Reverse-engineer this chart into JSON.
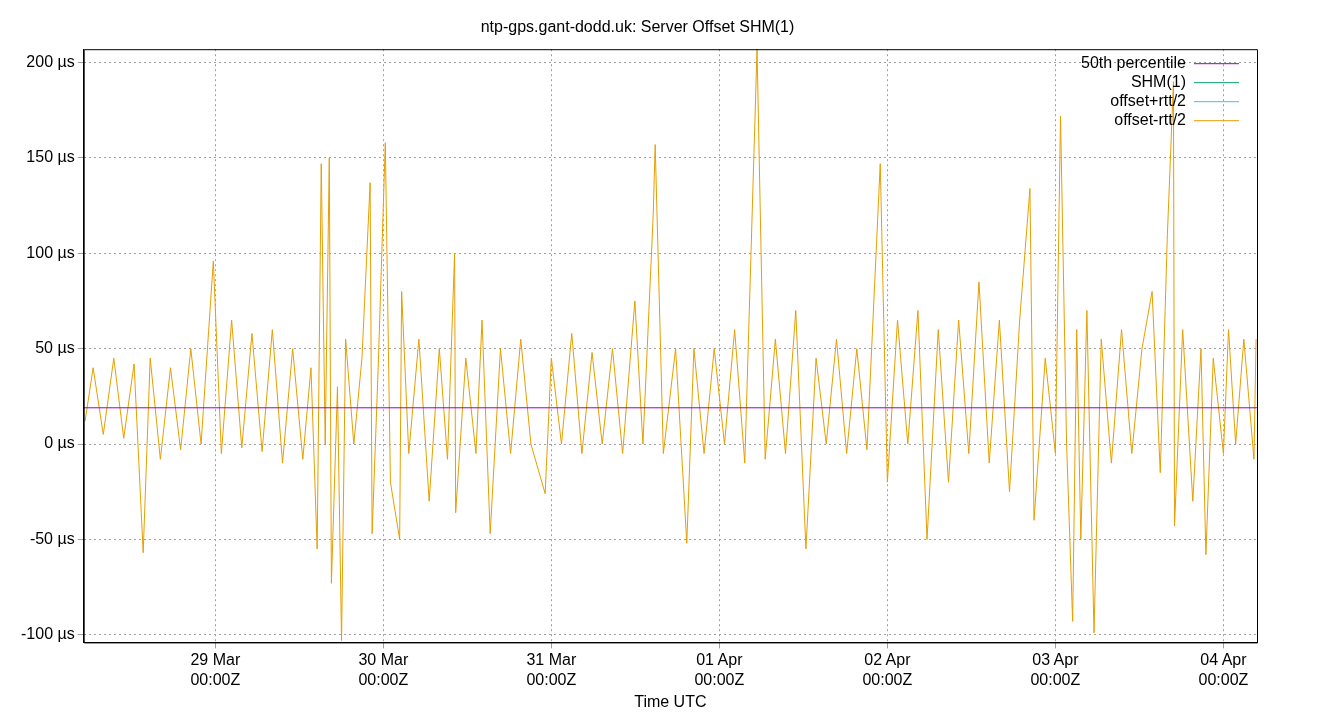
{
  "chart_data": {
    "type": "line",
    "title": "ntp-gps.gant-dodd.uk: Server Offset SHM(1)",
    "xlabel": "Time UTC",
    "xlim": [
      "--03-28T05:12",
      "--04-04T04:48"
    ],
    "xticks": [
      {
        "value": "--03-29T00:00",
        "label": "29 Mar\n00:00Z"
      },
      {
        "value": "--03-30T00:00",
        "label": "30 Mar\n00:00Z"
      },
      {
        "value": "--03-31T00:00",
        "label": "31 Mar\n00:00Z"
      },
      {
        "value": "--04-01T00:00",
        "label": "01 Apr\n00:00Z"
      },
      {
        "value": "--04-02T00:00",
        "label": "02 Apr\n00:00Z"
      },
      {
        "value": "--04-03T00:00",
        "label": "03 Apr\n00:00Z"
      },
      {
        "value": "--04-04T00:00",
        "label": "04 Apr\n00:00Z"
      }
    ],
    "ylim": [
      -104,
      207
    ],
    "yticks": [
      {
        "value": -100,
        "label": "-100 µs"
      },
      {
        "value": -50,
        "label": "-50 µs"
      },
      {
        "value": 0,
        "label": "0 µs"
      },
      {
        "value": 50,
        "label": "50 µs"
      },
      {
        "value": 100,
        "label": "100 µs"
      },
      {
        "value": 150,
        "label": "150 µs"
      },
      {
        "value": 200,
        "label": "200 µs"
      }
    ],
    "grid": true,
    "legend": "top right",
    "marker": "none",
    "line_style": "solid",
    "series": [
      {
        "name": "50th percentile",
        "color": "#9400d3",
        "x": [
          "--03-28T05:12",
          "--04-04T04:48"
        ],
        "values": [
          19,
          19
        ]
      },
      {
        "name": "SHM(1)",
        "color": "#009e73"
      },
      {
        "name": "offset+rtt/2",
        "color": "#56b4e9"
      },
      {
        "name": "offset-rtt/2",
        "color": "#e69f00",
        "x": [
          "--03-28T05:24",
          "--03-28T06:33",
          "--03-28T08:00",
          "--03-28T09:30",
          "--03-28T10:55",
          "--03-28T12:24",
          "--03-28T13:42",
          "--03-28T14:42",
          "--03-28T16:09",
          "--03-28T17:36",
          "--03-28T19:03",
          "--03-28T20:30",
          "--03-28T21:58",
          "--03-28T23:43",
          "--03-29T00:52",
          "--03-29T02:20",
          "--03-29T03:47",
          "--03-29T05:14",
          "--03-29T06:41",
          "--03-29T08:09",
          "--03-29T09:36",
          "--03-29T11:03",
          "--03-29T12:30",
          "--03-29T13:40",
          "--03-29T14:33",
          "--03-29T15:08",
          "--03-29T15:42",
          "--03-29T16:17",
          "--03-29T16:35",
          "--03-29T17:27",
          "--03-29T18:02",
          "--03-29T18:37",
          "--03-29T19:47",
          "--03-29T20:57",
          "--03-29T22:07",
          "--03-29T22:24",
          "--03-29T23:16",
          "--03-30T00:17",
          "--03-30T01:01",
          "--03-30T02:20",
          "--03-30T02:37",
          "--03-30T03:38",
          "--03-30T05:05",
          "--03-30T06:33",
          "--03-30T08:00",
          "--03-30T09:10",
          "--03-30T10:11",
          "--03-30T10:20",
          "--03-30T11:47",
          "--03-30T13:14",
          "--03-30T14:06",
          "--03-30T15:16",
          "--03-30T16:44",
          "--03-30T18:11",
          "--03-30T19:38",
          "--03-30T21:05",
          "--03-30T23:07",
          "--03-31T00:00",
          "--03-31T01:27",
          "--03-31T02:55",
          "--03-31T04:22",
          "--03-31T05:49",
          "--03-31T07:16",
          "--03-31T08:44",
          "--03-31T10:11",
          "--03-31T11:56",
          "--03-31T13:05",
          "--03-31T14:33",
          "--03-31T14:50",
          "--03-31T16:00",
          "--03-31T17:45",
          "--03-31T19:21",
          "--03-31T20:22",
          "--03-31T21:49",
          "--03-31T23:16",
          "--04-01T00:44",
          "--04-01T02:11",
          "--04-01T03:38",
          "--04-01T05:23",
          "--04-01T06:33",
          "--04-01T08:00",
          "--04-01T09:27",
          "--04-01T10:55",
          "--04-01T12:22",
          "--04-01T13:49",
          "--04-01T15:16",
          "--04-01T16:44",
          "--04-01T18:11",
          "--04-01T19:38",
          "--04-01T21:05",
          "--04-01T22:59",
          "--04-02T00:00",
          "--04-02T01:27",
          "--04-02T02:55",
          "--04-02T04:22",
          "--04-02T05:40",
          "--04-02T07:16",
          "--04-02T08:44",
          "--04-02T10:11",
          "--04-02T11:38",
          "--04-02T13:05",
          "--04-02T14:33",
          "--04-02T16:00",
          "--04-02T17:27",
          "--04-02T18:54",
          "--04-02T20:22",
          "--04-02T20:57",
          "--04-02T22:33",
          "--04-03T00:00",
          "--04-03T00:44",
          "--04-03T01:36",
          "--04-03T02:28",
          "--04-03T03:03",
          "--04-03T03:38",
          "--04-03T04:30",
          "--04-03T05:31",
          "--04-03T06:33",
          "--04-03T08:00",
          "--04-03T09:27",
          "--04-03T10:55",
          "--04-03T12:22",
          "--04-03T13:49",
          "--04-03T14:59",
          "--04-03T16:00",
          "--04-03T16:52",
          "--04-03T17:01",
          "--04-03T18:11",
          "--04-03T19:38",
          "--04-03T20:48",
          "--04-03T21:30",
          "--04-03T22:33",
          "--04-04T00:00",
          "--04-04T00:44",
          "--04-04T01:45",
          "--04-04T02:55",
          "--04-04T04:22",
          "--04-04T04:40"
        ],
        "values": [
          12,
          40,
          5,
          45,
          3,
          42,
          -57,
          45,
          -8,
          40,
          -3,
          50,
          0,
          96,
          -5,
          65,
          -2,
          58,
          -4,
          60,
          -10,
          50,
          -8,
          40,
          -55,
          147,
          0,
          150,
          -73,
          30,
          -103,
          55,
          0,
          45,
          137,
          -47,
          40,
          158,
          -20,
          -50,
          80,
          -5,
          55,
          -30,
          50,
          -8,
          100,
          -36,
          45,
          -5,
          65,
          -47,
          50,
          -5,
          55,
          0,
          -26,
          45,
          0,
          58,
          -5,
          48,
          0,
          50,
          -5,
          75,
          0,
          120,
          157,
          -5,
          50,
          -52,
          50,
          -5,
          50,
          0,
          60,
          -10,
          207,
          -8,
          55,
          -5,
          70,
          -55,
          45,
          0,
          55,
          -5,
          50,
          -3,
          147,
          -20,
          65,
          0,
          70,
          -50,
          60,
          -20,
          65,
          -5,
          85,
          -10,
          65,
          -25,
          65,
          134,
          -40,
          45,
          -5,
          172,
          0,
          -93,
          60,
          -50,
          70,
          -99,
          55,
          -10,
          60,
          -5,
          50,
          80,
          -15,
          110,
          190,
          -43,
          60,
          -30,
          50,
          -58,
          45,
          -5,
          60,
          0,
          55,
          -8,
          55
        ]
      }
    ]
  }
}
